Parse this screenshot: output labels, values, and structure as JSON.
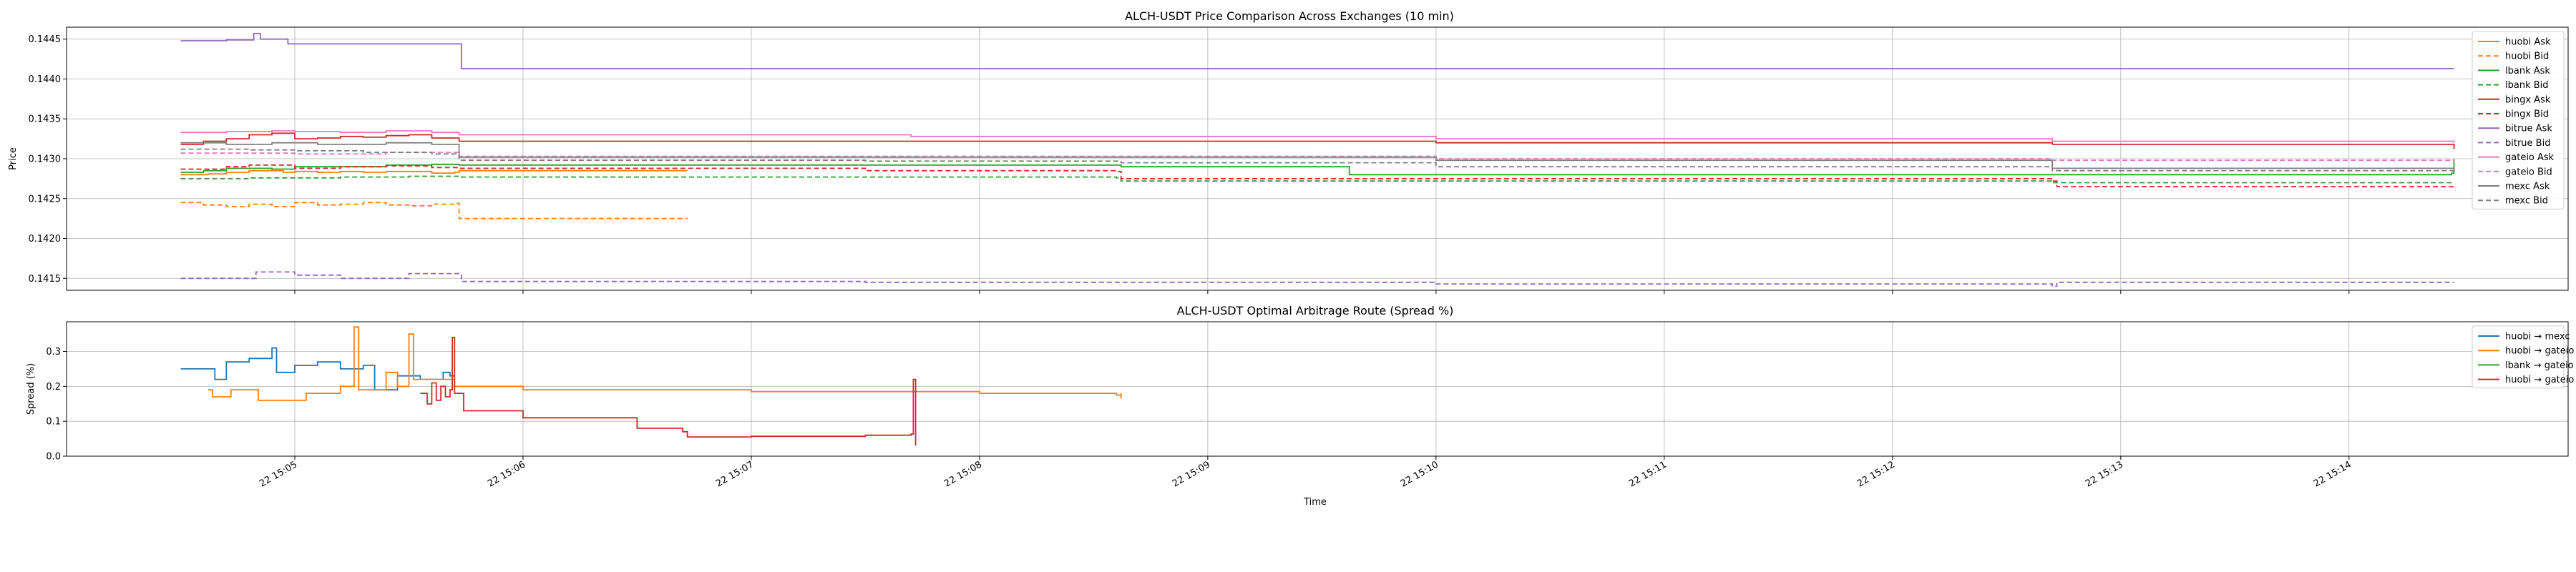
{
  "chart_data": [
    {
      "type": "line",
      "title": "ALCH-USDT Price Comparison Across Exchanges (10 min)",
      "xlabel": "",
      "ylabel": "Price",
      "ylim": [
        0.14135,
        0.14465
      ],
      "yticks": [
        "0.1415",
        "0.1420",
        "0.1425",
        "0.1430",
        "0.1435",
        "0.1440",
        "0.1445"
      ],
      "grid": true,
      "legend_position": "top-right",
      "series": [
        {
          "name": "huobi Ask",
          "color": "#ff7f0e",
          "dash": "solid",
          "points": [
            [
              4.5,
              0.1428
            ],
            [
              4.62,
              0.14281
            ],
            [
              4.7,
              0.14283
            ],
            [
              4.8,
              0.14285
            ],
            [
              4.9,
              0.14285
            ],
            [
              4.95,
              0.14283
            ],
            [
              5.0,
              0.14284
            ],
            [
              5.1,
              0.14283
            ],
            [
              5.2,
              0.14284
            ],
            [
              5.3,
              0.14283
            ],
            [
              5.4,
              0.14284
            ],
            [
              5.5,
              0.14284
            ],
            [
              5.6,
              0.14282
            ],
            [
              5.7,
              0.14283
            ],
            [
              5.72,
              0.14285
            ],
            [
              6.0,
              0.14285
            ],
            [
              6.3,
              0.14285
            ],
            [
              6.5,
              0.14285
            ],
            [
              6.72,
              0.14285
            ]
          ]
        },
        {
          "name": "huobi Bid",
          "color": "#ff7f0e",
          "dash": "dash",
          "points": [
            [
              4.5,
              0.14245
            ],
            [
              4.6,
              0.14242
            ],
            [
              4.7,
              0.1424
            ],
            [
              4.8,
              0.14243
            ],
            [
              4.9,
              0.1424
            ],
            [
              5.0,
              0.14245
            ],
            [
              5.1,
              0.14242
            ],
            [
              5.2,
              0.14243
            ],
            [
              5.3,
              0.14245
            ],
            [
              5.4,
              0.14242
            ],
            [
              5.5,
              0.14241
            ],
            [
              5.6,
              0.14243
            ],
            [
              5.7,
              0.14244
            ],
            [
              5.72,
              0.14225
            ],
            [
              6.0,
              0.14225
            ],
            [
              6.3,
              0.14225
            ],
            [
              6.72,
              0.14225
            ]
          ]
        },
        {
          "name": "lbank Ask",
          "color": "#2ca02c",
          "dash": "solid",
          "points": [
            [
              4.5,
              0.14283
            ],
            [
              4.6,
              0.14285
            ],
            [
              4.7,
              0.14288
            ],
            [
              4.9,
              0.14287
            ],
            [
              5.0,
              0.1429
            ],
            [
              5.2,
              0.1429
            ],
            [
              5.4,
              0.14292
            ],
            [
              5.6,
              0.14293
            ],
            [
              5.72,
              0.14292
            ],
            [
              6.5,
              0.14292
            ],
            [
              7.5,
              0.14292
            ],
            [
              8.6,
              0.14292
            ],
            [
              8.62,
              0.1429
            ],
            [
              9.6,
              0.1429
            ],
            [
              9.62,
              0.1428
            ],
            [
              12.7,
              0.1428
            ],
            [
              14.45,
              0.14282
            ],
            [
              14.46,
              0.143
            ]
          ]
        },
        {
          "name": "lbank Bid",
          "color": "#2ca02c",
          "dash": "dash",
          "points": [
            [
              4.5,
              0.14275
            ],
            [
              4.8,
              0.14276
            ],
            [
              5.2,
              0.14277
            ],
            [
              5.5,
              0.14278
            ],
            [
              5.72,
              0.14277
            ],
            [
              7.5,
              0.14277
            ],
            [
              8.6,
              0.14276
            ],
            [
              8.62,
              0.14272
            ],
            [
              9.6,
              0.14272
            ],
            [
              12.7,
              0.1427
            ],
            [
              14.46,
              0.1427
            ]
          ]
        },
        {
          "name": "bingx Ask",
          "color": "#d62728",
          "dash": "solid",
          "points": [
            [
              4.5,
              0.14318
            ],
            [
              4.6,
              0.14322
            ],
            [
              4.7,
              0.14325
            ],
            [
              4.8,
              0.1433
            ],
            [
              4.9,
              0.14332
            ],
            [
              5.0,
              0.14325
            ],
            [
              5.1,
              0.14326
            ],
            [
              5.2,
              0.14328
            ],
            [
              5.3,
              0.14327
            ],
            [
              5.4,
              0.14329
            ],
            [
              5.5,
              0.1433
            ],
            [
              5.6,
              0.14326
            ],
            [
              5.72,
              0.14322
            ],
            [
              7.5,
              0.14322
            ],
            [
              10.0,
              0.1432
            ],
            [
              12.7,
              0.14318
            ],
            [
              14.46,
              0.14312
            ]
          ]
        },
        {
          "name": "bingx Bid",
          "color": "#d62728",
          "dash": "dash",
          "points": [
            [
              4.5,
              0.14287
            ],
            [
              4.7,
              0.1429
            ],
            [
              4.8,
              0.14292
            ],
            [
              5.0,
              0.14288
            ],
            [
              5.2,
              0.1429
            ],
            [
              5.4,
              0.14291
            ],
            [
              5.6,
              0.14289
            ],
            [
              5.72,
              0.14288
            ],
            [
              7.5,
              0.14285
            ],
            [
              8.6,
              0.14284
            ],
            [
              8.62,
              0.14275
            ],
            [
              10.5,
              0.14275
            ],
            [
              12.7,
              0.14272
            ],
            [
              12.72,
              0.14265
            ],
            [
              14.46,
              0.14265
            ]
          ]
        },
        {
          "name": "bitrue Ask",
          "color": "#9467bd",
          "dash": "solid",
          "points": [
            [
              4.5,
              0.14448
            ],
            [
              4.7,
              0.14449
            ],
            [
              4.82,
              0.14457
            ],
            [
              4.85,
              0.1445
            ],
            [
              4.95,
              0.1445
            ],
            [
              4.97,
              0.14444
            ],
            [
              5.72,
              0.14444
            ],
            [
              5.73,
              0.14413
            ],
            [
              7.5,
              0.14413
            ],
            [
              10.0,
              0.14413
            ],
            [
              12.0,
              0.14413
            ],
            [
              14.46,
              0.14413
            ]
          ]
        },
        {
          "name": "bitrue Bid",
          "color": "#9467bd",
          "dash": "dash",
          "points": [
            [
              4.5,
              0.1415
            ],
            [
              4.8,
              0.1415
            ],
            [
              4.83,
              0.14158
            ],
            [
              5.0,
              0.14154
            ],
            [
              5.2,
              0.1415
            ],
            [
              5.5,
              0.14156
            ],
            [
              5.73,
              0.14146
            ],
            [
              7.5,
              0.14145
            ],
            [
              10.0,
              0.14143
            ],
            [
              12.7,
              0.1414
            ],
            [
              12.72,
              0.14145
            ],
            [
              14.46,
              0.14145
            ]
          ]
        },
        {
          "name": "gateio Ask",
          "color": "#e377c2",
          "dash": "solid",
          "points": [
            [
              4.5,
              0.14333
            ],
            [
              4.7,
              0.14334
            ],
            [
              4.9,
              0.14335
            ],
            [
              5.0,
              0.14334
            ],
            [
              5.2,
              0.14333
            ],
            [
              5.4,
              0.14335
            ],
            [
              5.6,
              0.14333
            ],
            [
              5.72,
              0.1433
            ],
            [
              7.7,
              0.14328
            ],
            [
              10.0,
              0.14325
            ],
            [
              12.7,
              0.14322
            ],
            [
              14.46,
              0.1432
            ]
          ]
        },
        {
          "name": "gateio Bid",
          "color": "#e377c2",
          "dash": "dash",
          "points": [
            [
              4.5,
              0.14307
            ],
            [
              5.0,
              0.14306
            ],
            [
              5.4,
              0.14308
            ],
            [
              5.72,
              0.14303
            ],
            [
              7.7,
              0.14303
            ],
            [
              10.0,
              0.143
            ],
            [
              12.7,
              0.14298
            ],
            [
              14.46,
              0.14296
            ]
          ]
        },
        {
          "name": "mexc Ask",
          "color": "#7f7f7f",
          "dash": "solid",
          "points": [
            [
              4.5,
              0.1432
            ],
            [
              4.7,
              0.14318
            ],
            [
              4.9,
              0.1432
            ],
            [
              5.1,
              0.14318
            ],
            [
              5.4,
              0.1432
            ],
            [
              5.6,
              0.14318
            ],
            [
              5.72,
              0.14302
            ],
            [
              7.5,
              0.14302
            ],
            [
              8.62,
              0.14302
            ],
            [
              10.0,
              0.14298
            ],
            [
              12.7,
              0.14288
            ],
            [
              14.46,
              0.14286
            ]
          ]
        },
        {
          "name": "mexc Bid",
          "color": "#7f7f7f",
          "dash": "dash",
          "points": [
            [
              4.5,
              0.14312
            ],
            [
              4.8,
              0.14311
            ],
            [
              5.0,
              0.1431
            ],
            [
              5.3,
              0.14308
            ],
            [
              5.6,
              0.14306
            ],
            [
              5.72,
              0.14298
            ],
            [
              7.5,
              0.14297
            ],
            [
              8.62,
              0.14295
            ],
            [
              10.0,
              0.1429
            ],
            [
              12.7,
              0.14285
            ],
            [
              14.46,
              0.14283
            ]
          ]
        }
      ]
    },
    {
      "type": "line",
      "title": "ALCH-USDT Optimal Arbitrage Route (Spread %)",
      "xlabel": "Time",
      "ylabel": "Spread (%)",
      "ylim": [
        0.0,
        0.385
      ],
      "yticks": [
        "0.0",
        "0.1",
        "0.2",
        "0.3"
      ],
      "xticks": [
        "22 15:05",
        "22 15:06",
        "22 15:07",
        "22 15:08",
        "22 15:09",
        "22 15:10",
        "22 15:11",
        "22 15:12",
        "22 15:13",
        "22 15:14"
      ],
      "x_units": "minutes past 15:00 on day 22",
      "xlim": [
        4.0,
        14.96
      ],
      "grid": true,
      "legend_position": "top-right",
      "series": [
        {
          "name": "huobi → mexc",
          "color": "#1f77b4",
          "points": [
            [
              4.5,
              0.25
            ],
            [
              4.6,
              0.25
            ],
            [
              4.65,
              0.22
            ],
            [
              4.7,
              0.27
            ],
            [
              4.8,
              0.28
            ],
            [
              4.9,
              0.31
            ],
            [
              4.92,
              0.24
            ],
            [
              5.0,
              0.26
            ],
            [
              5.1,
              0.27
            ],
            [
              5.2,
              0.25
            ],
            [
              5.3,
              0.26
            ],
            [
              5.35,
              0.19
            ],
            [
              5.45,
              0.23
            ],
            [
              5.55,
              0.22
            ],
            [
              5.65,
              0.24
            ],
            [
              5.68,
              0.23
            ],
            [
              5.7,
              0.23
            ]
          ]
        },
        {
          "name": "huobi → gateio",
          "color": "#ff7f0e",
          "points": [
            [
              4.62,
              0.19
            ],
            [
              4.64,
              0.17
            ],
            [
              4.7,
              0.17
            ],
            [
              4.72,
              0.19
            ],
            [
              4.82,
              0.19
            ],
            [
              4.84,
              0.16
            ],
            [
              5.0,
              0.16
            ],
            [
              5.05,
              0.18
            ],
            [
              5.15,
              0.18
            ],
            [
              5.2,
              0.2
            ],
            [
              5.26,
              0.37
            ],
            [
              5.28,
              0.19
            ],
            [
              5.35,
              0.19
            ],
            [
              5.4,
              0.24
            ],
            [
              5.45,
              0.2
            ],
            [
              5.5,
              0.35
            ],
            [
              5.52,
              0.22
            ],
            [
              5.6,
              0.22
            ],
            [
              5.7,
              0.2
            ],
            [
              6.0,
              0.19
            ],
            [
              7.0,
              0.185
            ],
            [
              8.0,
              0.18
            ],
            [
              8.6,
              0.175
            ],
            [
              8.62,
              0.165
            ],
            [
              8.62,
              0.18
            ]
          ]
        },
        {
          "name": "lbank → gateio",
          "color": "#2ca02c",
          "points": []
        },
        {
          "name": "huobi → gateio",
          "color": "#d62728",
          "points": [
            [
              5.55,
              0.18
            ],
            [
              5.58,
              0.15
            ],
            [
              5.6,
              0.21
            ],
            [
              5.62,
              0.16
            ],
            [
              5.64,
              0.2
            ],
            [
              5.66,
              0.17
            ],
            [
              5.68,
              0.19
            ],
            [
              5.69,
              0.34
            ],
            [
              5.7,
              0.18
            ],
            [
              5.72,
              0.18
            ],
            [
              5.74,
              0.13
            ],
            [
              6.0,
              0.11
            ],
            [
              6.5,
              0.08
            ],
            [
              6.7,
              0.07
            ],
            [
              6.72,
              0.055
            ],
            [
              7.0,
              0.057
            ],
            [
              7.5,
              0.06
            ],
            [
              7.7,
              0.063
            ],
            [
              7.71,
              0.22
            ],
            [
              7.72,
              0.03
            ]
          ]
        }
      ]
    }
  ]
}
